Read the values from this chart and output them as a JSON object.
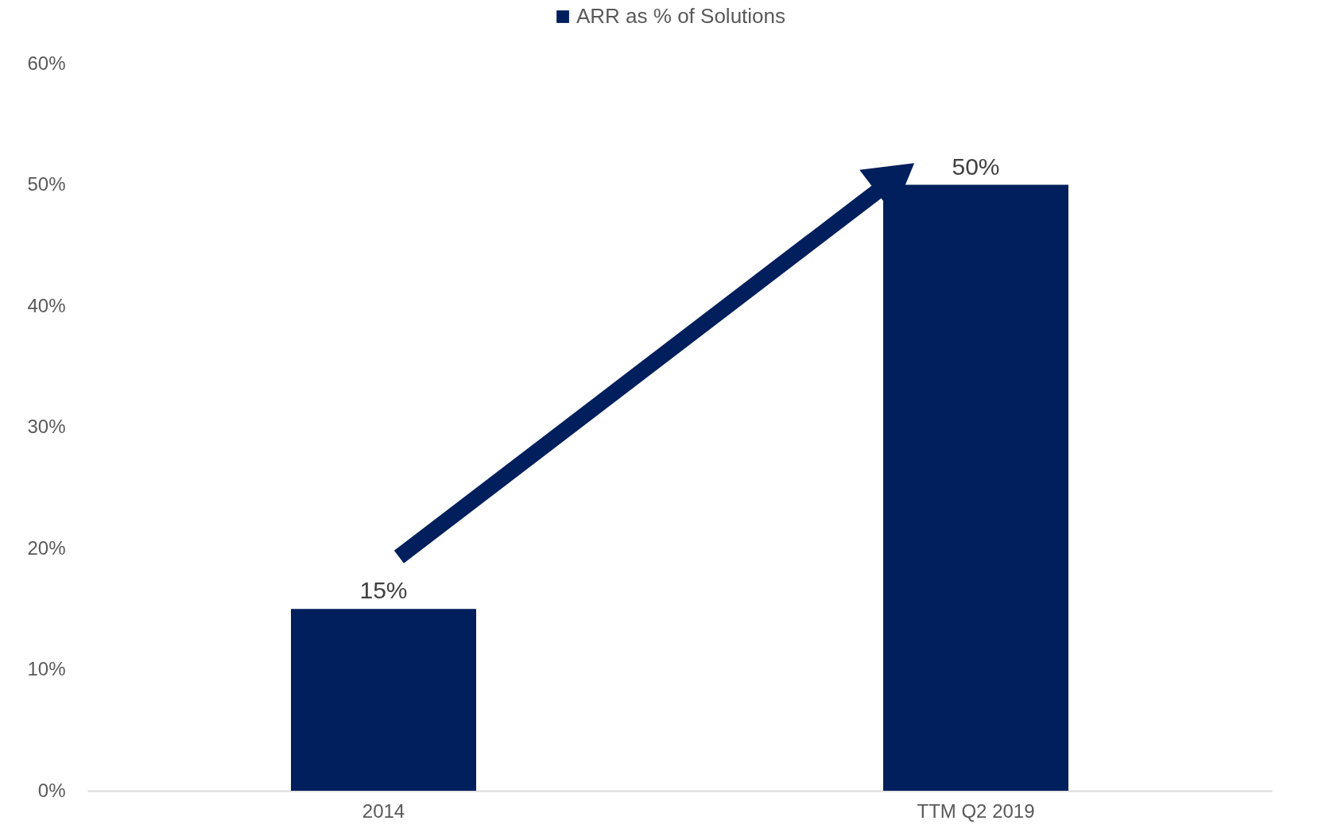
{
  "chart_data": {
    "type": "bar",
    "categories": [
      "2014",
      "TTM Q2 2019"
    ],
    "series": [
      {
        "name": "ARR as % of Solutions",
        "color": "#001f5c",
        "values": [
          15,
          50
        ]
      }
    ],
    "ylim": [
      0,
      60
    ],
    "yticks": [
      {
        "value": 0,
        "label": "0%"
      },
      {
        "value": 10,
        "label": "10%"
      },
      {
        "value": 20,
        "label": "20%"
      },
      {
        "value": 30,
        "label": "30%"
      },
      {
        "value": 40,
        "label": "40%"
      },
      {
        "value": 50,
        "label": "50%"
      },
      {
        "value": 60,
        "label": "60%"
      }
    ],
    "value_labels": [
      "15%",
      "50%"
    ],
    "grid": false,
    "legend": "top"
  }
}
